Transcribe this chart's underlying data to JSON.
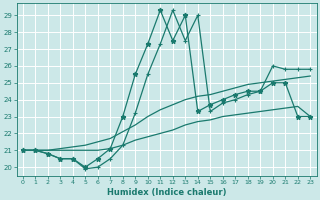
{
  "xlabel": "Humidex (Indice chaleur)",
  "bg_color": "#cce8e8",
  "grid_color": "#b0d8d8",
  "line_color": "#1a7a6e",
  "xlim": [
    -0.5,
    23.5
  ],
  "ylim": [
    19.5,
    29.7
  ],
  "yticks": [
    20,
    21,
    22,
    23,
    24,
    25,
    26,
    27,
    28,
    29
  ],
  "xticks": [
    0,
    1,
    2,
    3,
    4,
    5,
    6,
    7,
    8,
    9,
    10,
    11,
    12,
    13,
    14,
    15,
    16,
    17,
    18,
    19,
    20,
    21,
    22,
    23
  ],
  "line1_x": [
    0,
    1,
    2,
    3,
    4,
    5,
    6,
    7,
    8,
    9,
    10,
    11,
    12,
    13,
    14,
    15,
    16,
    17,
    18,
    19,
    20,
    21,
    22,
    23
  ],
  "line1_y": [
    21.0,
    21.0,
    20.8,
    20.5,
    20.5,
    20.0,
    20.5,
    21.1,
    23.0,
    25.5,
    27.3,
    29.3,
    27.5,
    29.0,
    23.3,
    23.7,
    24.0,
    24.3,
    24.5,
    24.5,
    25.0,
    25.0,
    23.0,
    23.0
  ],
  "line2_x": [
    0,
    1,
    2,
    3,
    4,
    5,
    6,
    7,
    8,
    9,
    10,
    11,
    12,
    13,
    14,
    15,
    16,
    17,
    18,
    19,
    20,
    21,
    22,
    23
  ],
  "line2_y": [
    21.0,
    21.0,
    21.0,
    21.1,
    21.2,
    21.3,
    21.5,
    21.7,
    22.1,
    22.5,
    23.0,
    23.4,
    23.7,
    24.0,
    24.2,
    24.3,
    24.5,
    24.7,
    24.9,
    25.0,
    25.1,
    25.2,
    25.3,
    25.4
  ],
  "line3_x": [
    0,
    1,
    2,
    3,
    4,
    5,
    6,
    7,
    8,
    9,
    10,
    11,
    12,
    13,
    14,
    15,
    16,
    17,
    18,
    19,
    20,
    21,
    22,
    23
  ],
  "line3_y": [
    21.0,
    21.0,
    20.8,
    20.5,
    20.5,
    19.9,
    20.0,
    20.5,
    21.3,
    23.2,
    25.5,
    27.3,
    29.3,
    27.5,
    29.0,
    23.3,
    23.8,
    24.0,
    24.3,
    24.5,
    26.0,
    25.8,
    25.8,
    25.8
  ],
  "line4_x": [
    0,
    1,
    2,
    3,
    4,
    5,
    6,
    7,
    8,
    9,
    10,
    11,
    12,
    13,
    14,
    15,
    16,
    17,
    18,
    19,
    20,
    21,
    22,
    23
  ],
  "line4_y": [
    21.0,
    21.0,
    21.0,
    21.0,
    21.0,
    21.0,
    21.0,
    21.1,
    21.3,
    21.6,
    21.8,
    22.0,
    22.2,
    22.5,
    22.7,
    22.8,
    23.0,
    23.1,
    23.2,
    23.3,
    23.4,
    23.5,
    23.6,
    23.0
  ]
}
